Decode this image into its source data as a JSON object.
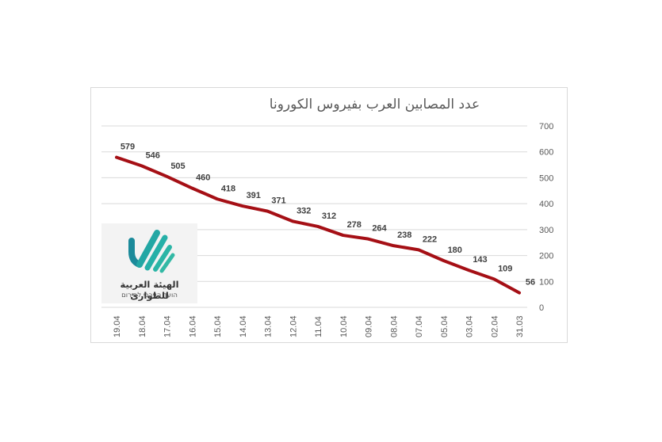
{
  "chart_data": {
    "type": "line",
    "title": "عدد المصابين العرب بفيروس الكورونا",
    "categories": [
      "19.04",
      "18.04",
      "17.04",
      "16.04",
      "15.04",
      "14.04",
      "13.04",
      "12.04",
      "11.04",
      "10.04",
      "09.04",
      "08.04",
      "07.04",
      "05.04",
      "03.04",
      "02.04",
      "31.03"
    ],
    "series": [
      {
        "name": "عدد المصابين",
        "values": [
          579,
          546,
          505,
          460,
          418,
          391,
          371,
          332,
          312,
          278,
          264,
          238,
          222,
          180,
          143,
          109,
          56
        ],
        "color": "#a50f15"
      }
    ],
    "xlabel": "",
    "ylabel": "",
    "ylim": [
      0,
      700
    ],
    "yticks": [
      0,
      100,
      200,
      300,
      400,
      500,
      600,
      700
    ],
    "y_axis_position": "right",
    "x_axis_reversed": true,
    "grid": true,
    "data_labels": true,
    "legend": "none"
  },
  "logo": {
    "arabic_text": "الهيئة العربية للطوارئ",
    "hebrew_text": "הועד הערבי לחירום",
    "color": "#1fa3a0"
  }
}
